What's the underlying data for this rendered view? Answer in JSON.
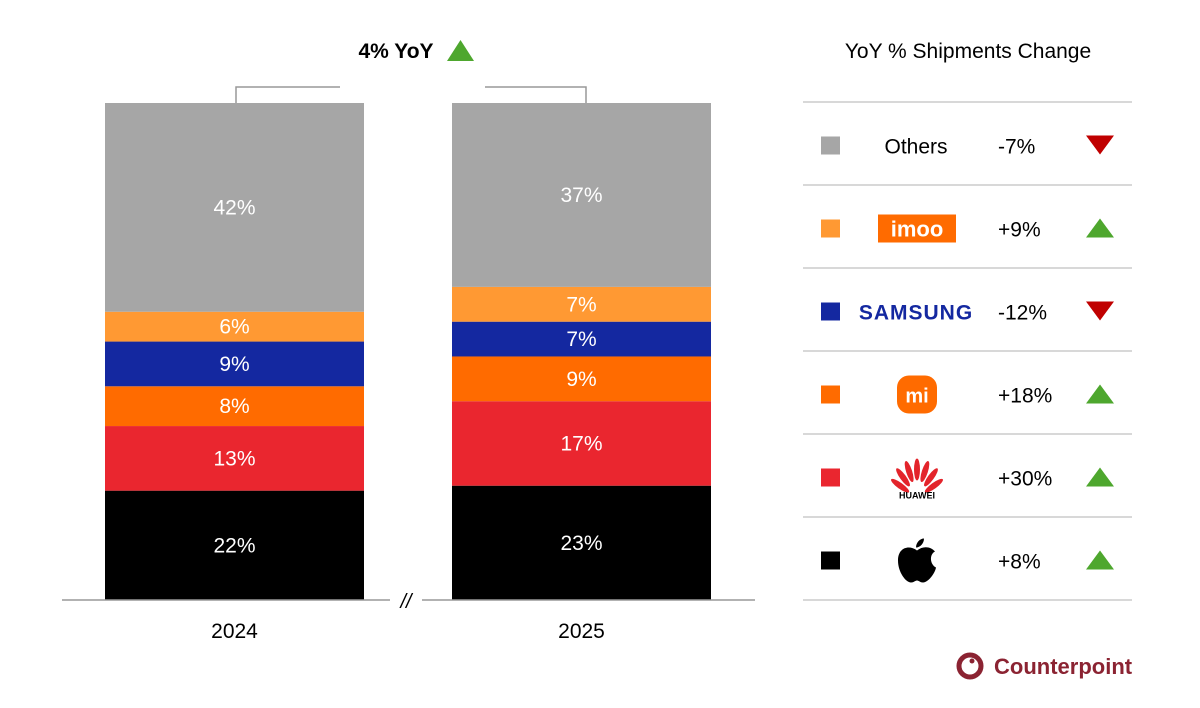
{
  "chart_data": {
    "type": "bar",
    "stacked": true,
    "categories": [
      "2024",
      "2025"
    ],
    "ylim": [
      0,
      100
    ],
    "grid": false,
    "series": [
      {
        "name": "Apple",
        "values": [
          22,
          23
        ],
        "color": "#000000",
        "yoy": "+8%",
        "trend": "up"
      },
      {
        "name": "Huawei",
        "values": [
          13,
          17
        ],
        "color": "#EA262F",
        "yoy": "+30%",
        "trend": "up"
      },
      {
        "name": "Xiaomi",
        "values": [
          8,
          9
        ],
        "color": "#FF6B00",
        "yoy": "+18%",
        "trend": "up"
      },
      {
        "name": "Samsung",
        "values": [
          9,
          7
        ],
        "color": "#1428A0",
        "yoy": "-12%",
        "trend": "down"
      },
      {
        "name": "imoo",
        "values": [
          6,
          7
        ],
        "color": "#FF9933",
        "yoy": "+9%",
        "trend": "up"
      },
      {
        "name": "Others",
        "values": [
          42,
          37
        ],
        "color": "#A6A6A6",
        "yoy": "-7%",
        "trend": "down"
      }
    ],
    "data_labels": [
      [
        "22%",
        "13%",
        "8%",
        "9%",
        "6%",
        "42%"
      ],
      [
        "23%",
        "17%",
        "9%",
        "7%",
        "7%",
        "37%"
      ]
    ],
    "annotation": {
      "text": "4% YoY",
      "trend": "up"
    },
    "axis_break": "//",
    "legend": {
      "title": "YoY % Shipments Change",
      "placement": "right",
      "order": [
        "Others",
        "imoo",
        "Samsung",
        "Xiaomi",
        "Huawei",
        "Apple"
      ],
      "logo_text": {
        "Others": "Others",
        "imoo": "imoo",
        "Samsung": "SAMSUNG",
        "Xiaomi": "mi",
        "Huawei": "HUAWEI",
        "Apple": "apple-logo-icon"
      }
    },
    "colors": {
      "up": "#4EA72E",
      "down": "#C00000"
    }
  },
  "brand": {
    "name": "Counterpoint",
    "color": "#8B2332"
  }
}
